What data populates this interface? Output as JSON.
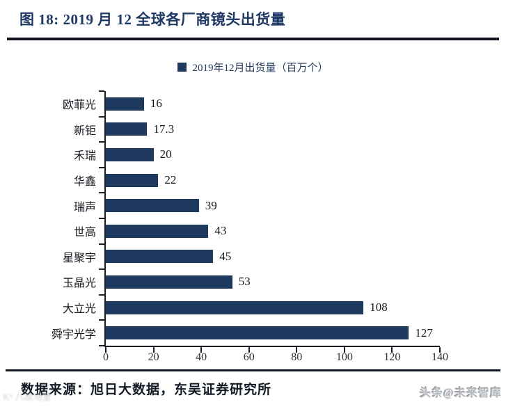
{
  "figure_title": "图 18:  2019 月 12 全球各厂商镜头出货量",
  "chart_data": {
    "type": "bar",
    "orientation": "horizontal",
    "title": "图 18:  2019 月 12 全球各厂商镜头出货量",
    "legend": "2019年12月出货量（百万个）",
    "legend_position": "top-center",
    "categories": [
      "欧菲光",
      "新钜",
      "禾瑞",
      "华鑫",
      "瑞声",
      "世高",
      "星聚宇",
      "玉晶光",
      "大立光",
      "舜宇光学"
    ],
    "values": [
      16,
      17.3,
      20,
      22,
      39,
      43,
      45,
      53,
      108,
      127
    ],
    "xlim": [
      0,
      140
    ],
    "x_ticks": [
      0,
      20,
      40,
      60,
      80,
      100,
      120,
      140
    ],
    "grid": false,
    "bar_color": "#1e3a5f"
  },
  "footer": {
    "source": "数据来源：旭日大数据，东吴证券研究所",
    "watermark_right": "头条@未来智库",
    "watermark_left": "K° 八故培里"
  },
  "colors": {
    "bar": "#1e3a5f",
    "title": "#1f3864",
    "rule": "#10161f",
    "watermark": "#b9bdc2"
  }
}
